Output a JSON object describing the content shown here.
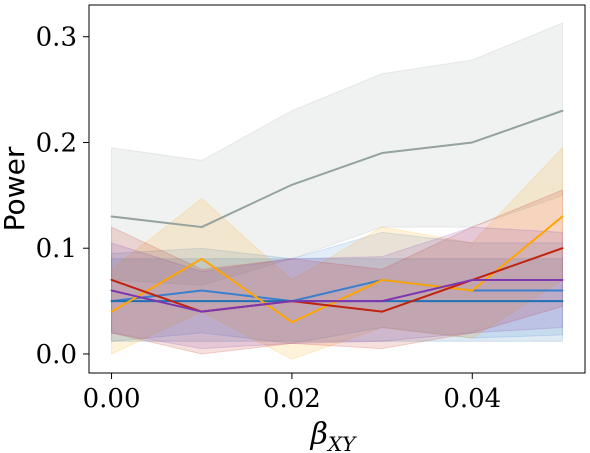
{
  "chart_data": {
    "type": "line",
    "xlabel": "β",
    "xlabel_subscript": "XY",
    "ylabel": "Power",
    "xlim": [
      -0.0025,
      0.0525
    ],
    "ylim": [
      -0.018,
      0.33
    ],
    "xticks": [
      0.0,
      0.02,
      0.04
    ],
    "xtick_labels": [
      "0.00",
      "0.02",
      "0.04"
    ],
    "yticks": [
      0.0,
      0.1,
      0.2,
      0.3
    ],
    "ytick_labels": [
      "0.0",
      "0.1",
      "0.2",
      "0.3"
    ],
    "grid": false,
    "legend": "none",
    "x": [
      0.0,
      0.01,
      0.02,
      0.03,
      0.04,
      0.05
    ],
    "series": [
      {
        "color": "#95a39f",
        "values": [
          0.13,
          0.12,
          0.16,
          0.19,
          0.2,
          0.23
        ],
        "lower": [
          0.07,
          0.065,
          0.09,
          0.12,
          0.12,
          0.15
        ],
        "upper": [
          0.195,
          0.183,
          0.23,
          0.265,
          0.278,
          0.313
        ]
      },
      {
        "color": "#3a7fcd",
        "values": [
          0.05,
          0.06,
          0.05,
          0.07,
          0.06,
          0.06
        ],
        "lower": [
          0.012,
          0.02,
          0.01,
          0.025,
          0.015,
          0.018
        ],
        "upper": [
          0.095,
          0.1,
          0.09,
          0.115,
          0.105,
          0.105
        ]
      },
      {
        "color": "#1f6fb4",
        "values": [
          0.05,
          0.05,
          0.05,
          0.05,
          0.05,
          0.05
        ],
        "lower": [
          0.012,
          0.012,
          0.012,
          0.012,
          0.012,
          0.012
        ],
        "upper": [
          0.09,
          0.09,
          0.09,
          0.09,
          0.09,
          0.09
        ]
      },
      {
        "color": "#ffa500",
        "values": [
          0.04,
          0.09,
          0.03,
          0.07,
          0.06,
          0.13
        ],
        "lower": [
          0.0,
          0.04,
          -0.005,
          0.025,
          0.015,
          0.07
        ],
        "upper": [
          0.08,
          0.147,
          0.07,
          0.12,
          0.105,
          0.195
        ]
      },
      {
        "color": "#c0220e",
        "values": [
          0.07,
          0.04,
          0.05,
          0.04,
          0.07,
          0.1
        ],
        "lower": [
          0.02,
          0.0,
          0.01,
          0.005,
          0.02,
          0.045
        ],
        "upper": [
          0.12,
          0.08,
          0.09,
          0.08,
          0.12,
          0.155
        ]
      },
      {
        "color": "#7d35b0",
        "values": [
          0.06,
          0.04,
          0.05,
          0.05,
          0.07,
          0.07
        ],
        "lower": [
          0.02,
          0.005,
          0.01,
          0.012,
          0.02,
          0.025
        ],
        "upper": [
          0.105,
          0.078,
          0.09,
          0.092,
          0.12,
          0.115
        ]
      }
    ]
  }
}
